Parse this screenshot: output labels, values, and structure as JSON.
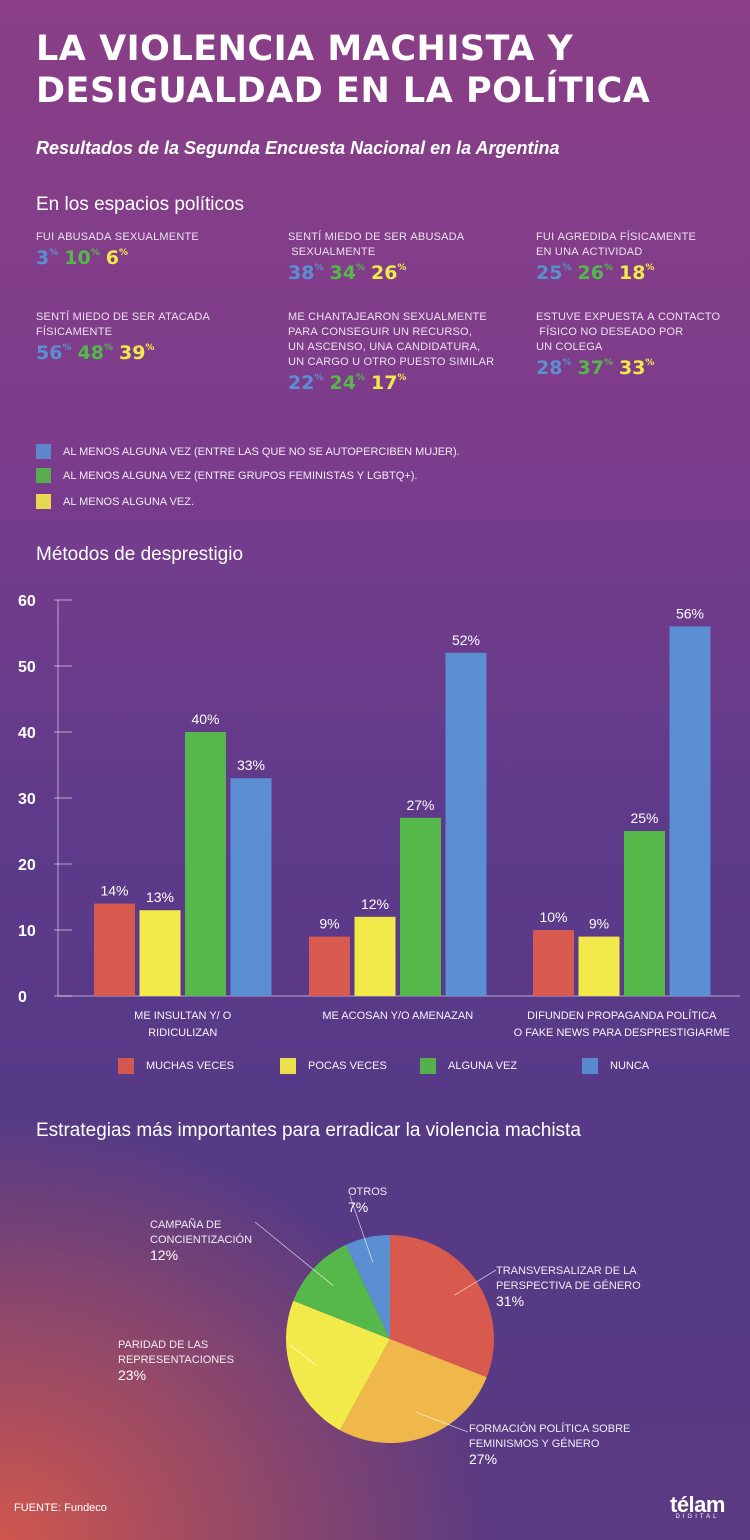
{
  "header": {
    "title_line1": "LA VIOLENCIA MACHISTA Y",
    "title_line2": "DESIGUALDAD EN LA POLÍTICA",
    "subtitle": "Resultados de la Segunda Encuesta Nacional en la Argentina"
  },
  "colors": {
    "blue": "#5b8fd1",
    "green": "#56b84a",
    "yellow": "#f2e94a",
    "red": "#d85a4e",
    "orange": "#f0b84a"
  },
  "espacios": {
    "title": "En los espacios políticos",
    "stats": [
      {
        "label": "FUI ABUSADA SEXUALMENTE",
        "values": [
          "3",
          "10",
          "6"
        ]
      },
      {
        "label": "SENTÍ MIEDO DE SER ABUSADA\n SEXUALMENTE",
        "values": [
          "38",
          "34",
          "26"
        ]
      },
      {
        "label": "FUI AGREDIDA FÍSICAMENTE\nEN UNA ACTIVIDAD",
        "values": [
          "25",
          "26",
          "18"
        ]
      },
      {
        "label": "SENTÍ MIEDO DE SER ATACADA\nFÍSICAMENTE",
        "values": [
          "56",
          "48",
          "39"
        ]
      },
      {
        "label": "ME CHANTAJEARON SEXUALMENTE\nPARA CONSEGUIR UN RECURSO,\nUN ASCENSO, UNA CANDIDATURA,\nUN CARGO U OTRO PUESTO SIMILAR",
        "values": [
          "22",
          "24",
          "17"
        ]
      },
      {
        "label": "ESTUVE EXPUESTA A CONTACTO\n FÍSICO NO DESEADO POR\nUN COLEGA",
        "values": [
          "28",
          "37",
          "33"
        ]
      }
    ],
    "percent_sign": "%",
    "legend": [
      "AL MENOS ALGUNA VEZ (ENTRE LAS QUE NO SE AUTOPERCIBEN MUJER).",
      "AL MENOS ALGUNA VEZ (ENTRE GRUPOS FEMINISTAS Y LGBTQ+).",
      "AL MENOS ALGUNA VEZ."
    ]
  },
  "metodos": {
    "title": "Métodos de desprestigio"
  },
  "estrategias": {
    "title": "Estrategias más importantes para erradicar la violencia machista"
  },
  "chart_data": [
    {
      "type": "bar",
      "title": "Métodos de desprestigio",
      "categories": [
        "ME INSULTAN Y/ O\nRIDICULIZAN",
        "ME ACOSAN Y/O AMENAZAN",
        "DIFUNDEN PROPAGANDA POLÍTICA\nO FAKE NEWS PARA DESPRESTIGIARME"
      ],
      "series": [
        {
          "name": "MUCHAS VECES",
          "color": "#d85a4e",
          "values": [
            14,
            9,
            10
          ]
        },
        {
          "name": "POCAS VECES",
          "color": "#f2e94a",
          "values": [
            13,
            12,
            9
          ]
        },
        {
          "name": "ALGUNA VEZ",
          "color": "#56b84a",
          "values": [
            40,
            27,
            25
          ]
        },
        {
          "name": "NUNCA",
          "color": "#5b8fd1",
          "values": [
            33,
            52,
            56
          ]
        }
      ],
      "yticks": [
        0,
        10,
        20,
        30,
        40,
        50,
        60
      ],
      "ylim": [
        0,
        60
      ],
      "value_suffix": "%",
      "legend_position": "bottom"
    },
    {
      "type": "pie",
      "title": "Estrategias más importantes para erradicar la violencia machista",
      "slices": [
        {
          "label": "TRANSVERSALIZAR DE LA\nPERSPECTIVA DE GÉNERO",
          "value": 31,
          "display": "31%",
          "color": "#d85a4e"
        },
        {
          "label": "FORMACIÓN POLÍTICA SOBRE\nFEMINISMOS Y GÉNERO",
          "value": 27,
          "display": "27%",
          "color": "#f0b84a"
        },
        {
          "label": "PARIDAD DE LAS\nREPRESENTACIONES",
          "value": 23,
          "display": "23%",
          "color": "#f2e94a"
        },
        {
          "label": "CAMPAÑA DE\nCONCIENTIZACIÓN",
          "value": 12,
          "display": "12%",
          "color": "#56b84a"
        },
        {
          "label": "OTROS",
          "value": 7,
          "display": "7%",
          "color": "#5b8fd1"
        }
      ]
    }
  ],
  "footer": {
    "source": "FUENTE: Fundeco",
    "logo": "télam",
    "logo_sub": "DIGITAL"
  }
}
